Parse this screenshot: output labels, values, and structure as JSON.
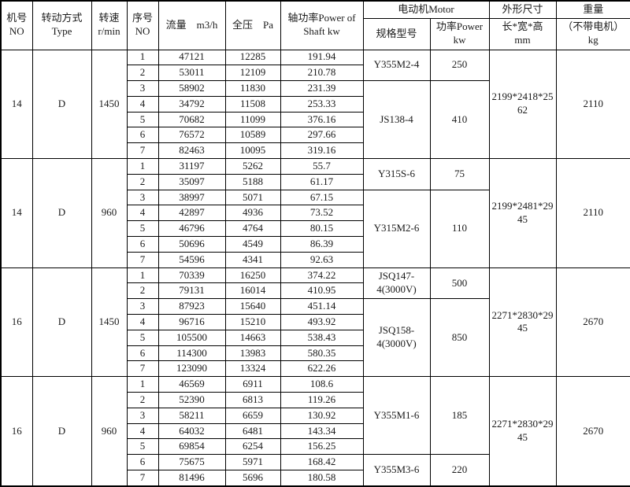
{
  "table": {
    "header": {
      "machine_no": "机号\nNO",
      "drive_type": "转动方式\nType",
      "speed": "转速\nr/min",
      "seq_no": "序号\nNO",
      "flow": "流量　m3/h",
      "pressure": "全压　Pa",
      "shaft_power": "轴功率Power of\nShaft kw",
      "motor": "电动机Motor",
      "motor_model": "规格型号",
      "motor_power": "功率Power\nkw",
      "dimensions": "外形尺寸",
      "dimensions_sub": "长*宽*高\nmm",
      "weight": "重量",
      "weight_sub": "（不带电机）\nkg"
    },
    "groups": [
      {
        "no": "14",
        "type": "D",
        "speed": "1450",
        "rows": [
          {
            "seq": "1",
            "flow": "47121",
            "pressure": "12285",
            "shaft": "191.94"
          },
          {
            "seq": "2",
            "flow": "53011",
            "pressure": "12109",
            "shaft": "210.78"
          },
          {
            "seq": "3",
            "flow": "58902",
            "pressure": "11830",
            "shaft": "231.39"
          },
          {
            "seq": "4",
            "flow": "34792",
            "pressure": "11508",
            "shaft": "253.33"
          },
          {
            "seq": "5",
            "flow": "70682",
            "pressure": "11099",
            "shaft": "376.16"
          },
          {
            "seq": "6",
            "flow": "76572",
            "pressure": "10589",
            "shaft": "297.66"
          },
          {
            "seq": "7",
            "flow": "82463",
            "pressure": "10095",
            "shaft": "319.16"
          }
        ],
        "motors": [
          {
            "model": "Y355M2-4",
            "power": "250",
            "span": 2
          },
          {
            "model": "JS138-4",
            "power": "410",
            "span": 5
          }
        ],
        "dims": "2199*2418*2562",
        "weight": "2110"
      },
      {
        "no": "14",
        "type": "D",
        "speed": "960",
        "rows": [
          {
            "seq": "1",
            "flow": "31197",
            "pressure": "5262",
            "shaft": "55.7"
          },
          {
            "seq": "2",
            "flow": "35097",
            "pressure": "5188",
            "shaft": "61.17"
          },
          {
            "seq": "3",
            "flow": "38997",
            "pressure": "5071",
            "shaft": "67.15"
          },
          {
            "seq": "4",
            "flow": "42897",
            "pressure": "4936",
            "shaft": "73.52"
          },
          {
            "seq": "5",
            "flow": "46796",
            "pressure": "4764",
            "shaft": "80.15"
          },
          {
            "seq": "6",
            "flow": "50696",
            "pressure": "4549",
            "shaft": "86.39"
          },
          {
            "seq": "7",
            "flow": "54596",
            "pressure": "4341",
            "shaft": "92.63"
          }
        ],
        "motors": [
          {
            "model": "Y315S-6",
            "power": "75",
            "span": 2
          },
          {
            "model": "Y315M2-6",
            "power": "110",
            "span": 5
          }
        ],
        "dims": "2199*2481*2945",
        "weight": "2110"
      },
      {
        "no": "16",
        "type": "D",
        "speed": "1450",
        "rows": [
          {
            "seq": "1",
            "flow": "70339",
            "pressure": "16250",
            "shaft": "374.22"
          },
          {
            "seq": "2",
            "flow": "79131",
            "pressure": "16014",
            "shaft": "410.95"
          },
          {
            "seq": "3",
            "flow": "87923",
            "pressure": "15640",
            "shaft": "451.14"
          },
          {
            "seq": "4",
            "flow": "96716",
            "pressure": "15210",
            "shaft": "493.92"
          },
          {
            "seq": "5",
            "flow": "105500",
            "pressure": "14663",
            "shaft": "538.43"
          },
          {
            "seq": "6",
            "flow": "114300",
            "pressure": "13983",
            "shaft": "580.35"
          },
          {
            "seq": "7",
            "flow": "123090",
            "pressure": "13324",
            "shaft": "622.26"
          }
        ],
        "motors": [
          {
            "model": "JSQ147-4(3000V)",
            "power": "500",
            "span": 2
          },
          {
            "model": "JSQ158-4(3000V)",
            "power": "850",
            "span": 5
          }
        ],
        "dims": "2271*2830*2945",
        "weight": "2670"
      },
      {
        "no": "16",
        "type": "D",
        "speed": "960",
        "rows": [
          {
            "seq": "1",
            "flow": "46569",
            "pressure": "6911",
            "shaft": "108.6"
          },
          {
            "seq": "2",
            "flow": "52390",
            "pressure": "6813",
            "shaft": "119.26"
          },
          {
            "seq": "3",
            "flow": "58211",
            "pressure": "6659",
            "shaft": "130.92"
          },
          {
            "seq": "4",
            "flow": "64032",
            "pressure": "6481",
            "shaft": "143.34"
          },
          {
            "seq": "5",
            "flow": "69854",
            "pressure": "6254",
            "shaft": "156.25"
          },
          {
            "seq": "6",
            "flow": "75675",
            "pressure": "5971",
            "shaft": "168.42"
          },
          {
            "seq": "7",
            "flow": "81496",
            "pressure": "5696",
            "shaft": "180.58"
          }
        ],
        "motors": [
          {
            "model": "Y355M1-6",
            "power": "185",
            "span": 5
          },
          {
            "model": "Y355M3-6",
            "power": "220",
            "span": 2
          }
        ],
        "dims": "2271*2830*2945",
        "weight": "2670"
      }
    ]
  }
}
